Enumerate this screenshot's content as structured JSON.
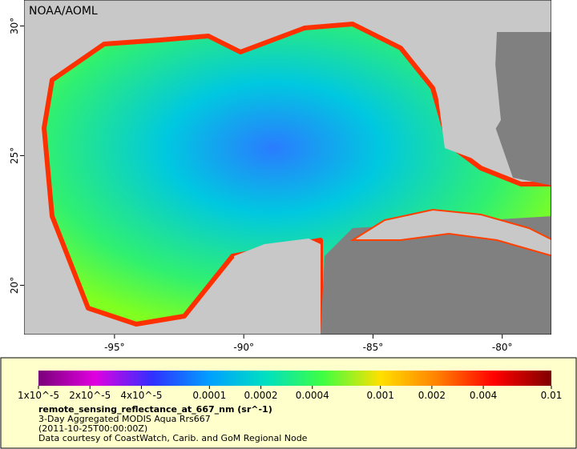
{
  "map": {
    "label": "NOAA/AOML",
    "xlim": [
      -98.5,
      -78.1
    ],
    "ylim": [
      18.1,
      31
    ],
    "xticks": [
      {
        "value": -95,
        "label": "-95°"
      },
      {
        "value": -90,
        "label": "-90°"
      },
      {
        "value": -85,
        "label": "-85°"
      },
      {
        "value": -80,
        "label": "-80°"
      }
    ],
    "yticks": [
      {
        "value": 20,
        "label": "20°"
      },
      {
        "value": 25,
        "label": "25°"
      },
      {
        "value": 30,
        "label": "30°"
      }
    ]
  },
  "colorbar": {
    "scale": "log",
    "lim": [
      1e-05,
      0.01
    ],
    "colors": [
      "#7a007a",
      "#e000e0",
      "#3030ff",
      "#00a0ff",
      "#00e0c0",
      "#40ff40",
      "#ffe000",
      "#ff8000",
      "#ff0000",
      "#800000"
    ],
    "ticks": [
      {
        "value": 1e-05,
        "label": "1x10^-5"
      },
      {
        "value": 2e-05,
        "label": "2x10^-5"
      },
      {
        "value": 4e-05,
        "label": "4x10^-5"
      },
      {
        "value": 0.0001,
        "label": "0.0001"
      },
      {
        "value": 0.0002,
        "label": "0.0002"
      },
      {
        "value": 0.0004,
        "label": "0.0004"
      },
      {
        "value": 0.001,
        "label": "0.001"
      },
      {
        "value": 0.002,
        "label": "0.002"
      },
      {
        "value": 0.004,
        "label": "0.004"
      },
      {
        "value": 0.01,
        "label": "0.01"
      }
    ]
  },
  "legend": {
    "variable": "remote_sensing_reflectance_at_667_nm (sr^-1)",
    "dataset": "3-Day Aggregated MODIS Aqua Rrs667",
    "time": "(2011-10-25T00:00:00Z)",
    "credit": "Data courtesy of CoastWatch, Carib. and GoM Regional Node"
  }
}
